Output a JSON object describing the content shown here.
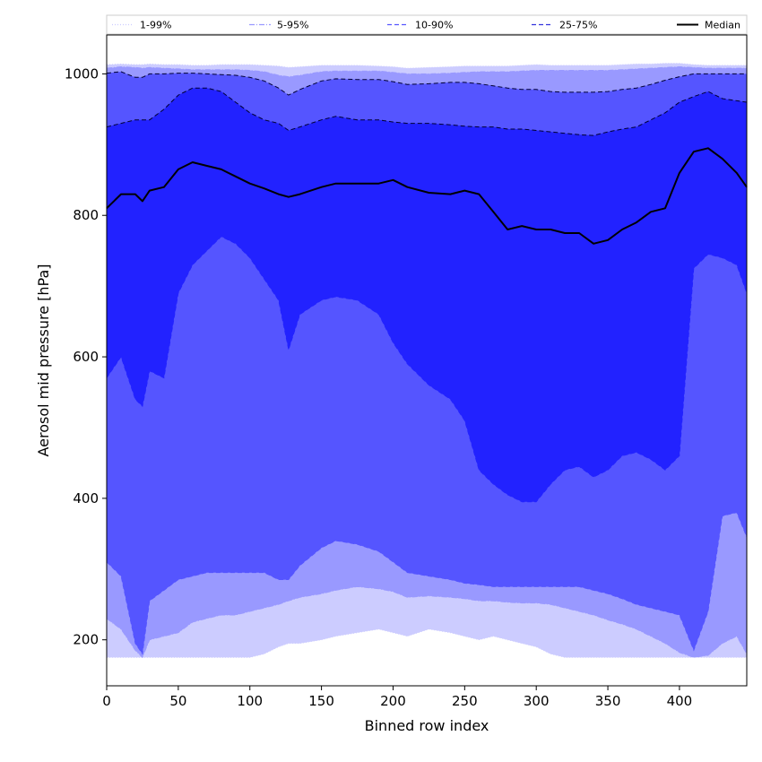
{
  "chart_data": {
    "type": "area",
    "title": "",
    "xlabel": "Binned row index",
    "ylabel": "Aerosol mid pressure [hPa]",
    "xlim": [
      0,
      447
    ],
    "ylim": [
      135,
      1055
    ],
    "xticks": [
      0,
      50,
      100,
      150,
      200,
      250,
      300,
      350,
      400
    ],
    "yticks": [
      200,
      400,
      600,
      800,
      1000
    ],
    "grid": false,
    "legend_placement": "top, horizontal strip",
    "legend": [
      {
        "label": "1-99%",
        "style": "dotted",
        "color": "#ccccff"
      },
      {
        "label": "5-95%",
        "style": "dashdot",
        "color": "#9999ff"
      },
      {
        "label": "10-90%",
        "style": "dashed",
        "color": "#5555ff"
      },
      {
        "label": "25-75%",
        "style": "dashed",
        "color": "#2222ff"
      },
      {
        "label": "Median",
        "style": "solid",
        "color": "#000000"
      }
    ],
    "x": [
      0,
      10,
      20,
      25,
      30,
      40,
      50,
      60,
      70,
      80,
      90,
      100,
      110,
      120,
      127,
      135,
      150,
      160,
      175,
      190,
      200,
      210,
      225,
      240,
      250,
      260,
      270,
      280,
      290,
      300,
      310,
      320,
      330,
      340,
      350,
      360,
      370,
      380,
      390,
      400,
      410,
      420,
      430,
      440,
      447
    ],
    "series": [
      {
        "name": "1-99%",
        "fill": "#ccccff",
        "lower": [
          175,
          175,
          175,
          175,
          175,
          175,
          175,
          175,
          175,
          175,
          175,
          175,
          180,
          190,
          195,
          195,
          200,
          205,
          210,
          215,
          210,
          205,
          215,
          210,
          205,
          200,
          205,
          200,
          195,
          190,
          180,
          175,
          175,
          175,
          175,
          175,
          175,
          175,
          175,
          175,
          175,
          175,
          175,
          175,
          175
        ],
        "upper": [
          1013,
          1014,
          1013,
          1013,
          1014,
          1013,
          1013,
          1012,
          1012,
          1013,
          1013,
          1013,
          1012,
          1011,
          1009,
          1010,
          1012,
          1012,
          1012,
          1011,
          1010,
          1008,
          1009,
          1010,
          1011,
          1011,
          1011,
          1011,
          1012,
          1013,
          1012,
          1012,
          1012,
          1012,
          1012,
          1013,
          1014,
          1014,
          1015,
          1015,
          1013,
          1012,
          1012,
          1012,
          1012
        ]
      },
      {
        "name": "5-95%",
        "fill": "#9999ff",
        "lower": [
          230,
          215,
          185,
          175,
          200,
          205,
          210,
          225,
          230,
          235,
          235,
          240,
          245,
          250,
          255,
          260,
          265,
          270,
          275,
          272,
          268,
          260,
          262,
          260,
          258,
          255,
          255,
          253,
          252,
          252,
          250,
          245,
          240,
          235,
          228,
          222,
          215,
          205,
          195,
          182,
          175,
          178,
          195,
          205,
          180
        ],
        "upper": [
          1008,
          1010,
          1009,
          1008,
          1009,
          1008,
          1007,
          1006,
          1006,
          1006,
          1006,
          1005,
          1003,
          998,
          996,
          998,
          1003,
          1004,
          1004,
          1004,
          1002,
          1000,
          1000,
          1001,
          1002,
          1003,
          1003,
          1003,
          1004,
          1005,
          1005,
          1005,
          1005,
          1005,
          1005,
          1006,
          1007,
          1008,
          1009,
          1010,
          1009,
          1008,
          1008,
          1008,
          1008
        ]
      },
      {
        "name": "10-90%",
        "fill": "#5555ff",
        "lower": [
          310,
          290,
          195,
          180,
          255,
          270,
          285,
          290,
          295,
          295,
          295,
          295,
          295,
          285,
          285,
          305,
          330,
          340,
          335,
          325,
          310,
          295,
          290,
          285,
          280,
          278,
          275,
          275,
          275,
          275,
          275,
          275,
          275,
          270,
          265,
          258,
          250,
          245,
          240,
          235,
          185,
          240,
          375,
          380,
          345
        ],
        "upper": [
          1001,
          1003,
          995,
          995,
          1000,
          1000,
          1001,
          1001,
          1000,
          999,
          998,
          995,
          990,
          980,
          970,
          978,
          990,
          993,
          992,
          992,
          989,
          985,
          986,
          988,
          988,
          986,
          983,
          980,
          978,
          978,
          975,
          974,
          974,
          974,
          975,
          978,
          980,
          985,
          991,
          996,
          1000,
          1000,
          1000,
          1000,
          1000
        ]
      },
      {
        "name": "25-75%",
        "fill": "#2222ff",
        "lower": [
          570,
          600,
          540,
          530,
          580,
          570,
          690,
          730,
          750,
          770,
          760,
          740,
          710,
          680,
          610,
          660,
          680,
          685,
          680,
          660,
          620,
          590,
          560,
          540,
          510,
          440,
          420,
          405,
          395,
          395,
          420,
          440,
          445,
          430,
          440,
          460,
          465,
          455,
          440,
          460,
          725,
          745,
          740,
          730,
          690
        ],
        "upper": [
          925,
          930,
          935,
          935,
          935,
          950,
          970,
          980,
          980,
          975,
          960,
          945,
          935,
          930,
          920,
          925,
          935,
          940,
          935,
          935,
          932,
          930,
          930,
          928,
          926,
          925,
          925,
          922,
          922,
          920,
          918,
          916,
          914,
          913,
          918,
          922,
          925,
          935,
          945,
          960,
          968,
          975,
          965,
          962,
          960
        ]
      },
      {
        "name": "Median",
        "line": "#000000",
        "values": [
          810,
          830,
          830,
          820,
          835,
          840,
          865,
          875,
          870,
          865,
          855,
          845,
          838,
          830,
          826,
          830,
          840,
          845,
          845,
          845,
          850,
          840,
          832,
          830,
          835,
          830,
          805,
          780,
          785,
          780,
          780,
          775,
          775,
          760,
          765,
          780,
          790,
          805,
          810,
          860,
          890,
          895,
          880,
          860,
          840
        ]
      }
    ]
  }
}
